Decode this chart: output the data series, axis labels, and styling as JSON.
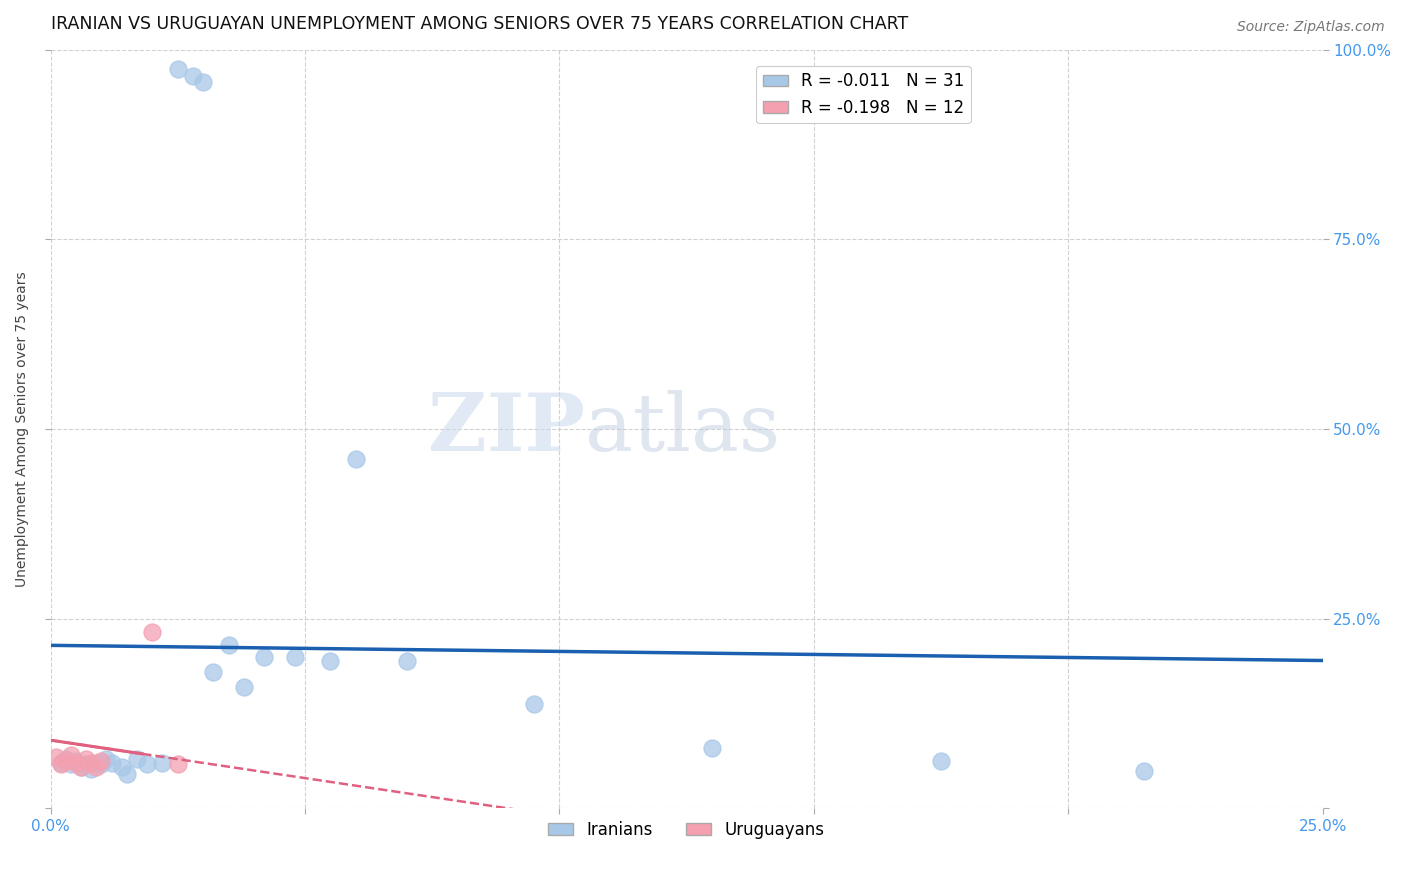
{
  "title": "IRANIAN VS URUGUAYAN UNEMPLOYMENT AMONG SENIORS OVER 75 YEARS CORRELATION CHART",
  "source": "Source: ZipAtlas.com",
  "ylabel": "Unemployment Among Seniors over 75 years",
  "xlim": [
    0.0,
    0.25
  ],
  "ylim": [
    0.0,
    1.0
  ],
  "xtick_vals": [
    0.0,
    0.05,
    0.1,
    0.15,
    0.2,
    0.25
  ],
  "xtick_labels": [
    "0.0%",
    "",
    "",
    "",
    "",
    "25.0%"
  ],
  "ytick_vals": [
    0.0,
    0.25,
    0.5,
    0.75,
    1.0
  ],
  "ytick_labels": [
    "",
    "25.0%",
    "50.0%",
    "75.0%",
    "100.0%"
  ],
  "iranian_color": "#a8c8e8",
  "uruguayan_color": "#f4a0b0",
  "iranian_line_color": "#1a5fb0",
  "uruguayan_line_color": "#e06080",
  "tick_color": "#4499ee",
  "background_color": "#ffffff",
  "grid_color": "#cccccc",
  "title_fontsize": 12.5,
  "label_fontsize": 10,
  "tick_fontsize": 11,
  "source_fontsize": 10,
  "marker_size": 150,
  "watermark_zip": "ZIP",
  "watermark_atlas": "atlas",
  "iranian_x": [
    0.002,
    0.003,
    0.004,
    0.005,
    0.006,
    0.007,
    0.008,
    0.009,
    0.01,
    0.011,
    0.012,
    0.014,
    0.015,
    0.017,
    0.019,
    0.022,
    0.025,
    0.028,
    0.03,
    0.032,
    0.035,
    0.038,
    0.042,
    0.048,
    0.055,
    0.06,
    0.07,
    0.095,
    0.13,
    0.175,
    0.215
  ],
  "iranian_y": [
    0.06,
    0.065,
    0.058,
    0.062,
    0.055,
    0.058,
    0.052,
    0.06,
    0.058,
    0.065,
    0.06,
    0.055,
    0.045,
    0.065,
    0.058,
    0.06,
    0.975,
    0.965,
    0.958,
    0.18,
    0.215,
    0.16,
    0.2,
    0.2,
    0.195,
    0.46,
    0.195,
    0.138,
    0.08,
    0.062,
    0.05
  ],
  "uruguayan_x": [
    0.001,
    0.002,
    0.003,
    0.004,
    0.005,
    0.006,
    0.007,
    0.008,
    0.009,
    0.01,
    0.02,
    0.025
  ],
  "uruguayan_y": [
    0.068,
    0.058,
    0.062,
    0.07,
    0.06,
    0.055,
    0.065,
    0.06,
    0.055,
    0.062,
    0.232,
    0.058
  ]
}
